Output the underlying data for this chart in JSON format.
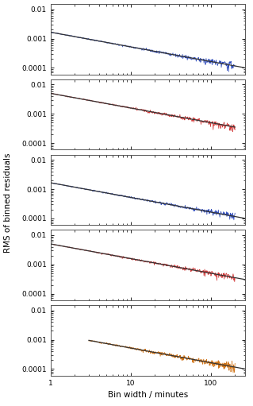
{
  "n_panels": 5,
  "panel_colors": [
    "#1a3ab5",
    "#cc2222",
    "#1a3ab5",
    "#cc2222",
    "#cc6600"
  ],
  "ylim": [
    6e-05,
    0.015
  ],
  "xlim": [
    1,
    270
  ],
  "panel_starts": [
    1,
    1,
    1,
    1,
    3
  ],
  "panel_rms0": [
    0.00165,
    0.005,
    0.00165,
    0.005,
    0.00095
  ],
  "panel_npts_total": [
    600,
    600,
    600,
    600,
    150
  ],
  "ref_slope": [
    -0.5,
    -0.5,
    -0.5,
    -0.5,
    -0.5
  ],
  "ref_end_x": [
    270,
    200,
    270,
    270,
    270
  ],
  "ylabel": "RMS of binned residuals",
  "xlabel": "Bin width / minutes",
  "label_fontsize": 7.5,
  "tick_fontsize": 6.5,
  "background": "#ffffff"
}
